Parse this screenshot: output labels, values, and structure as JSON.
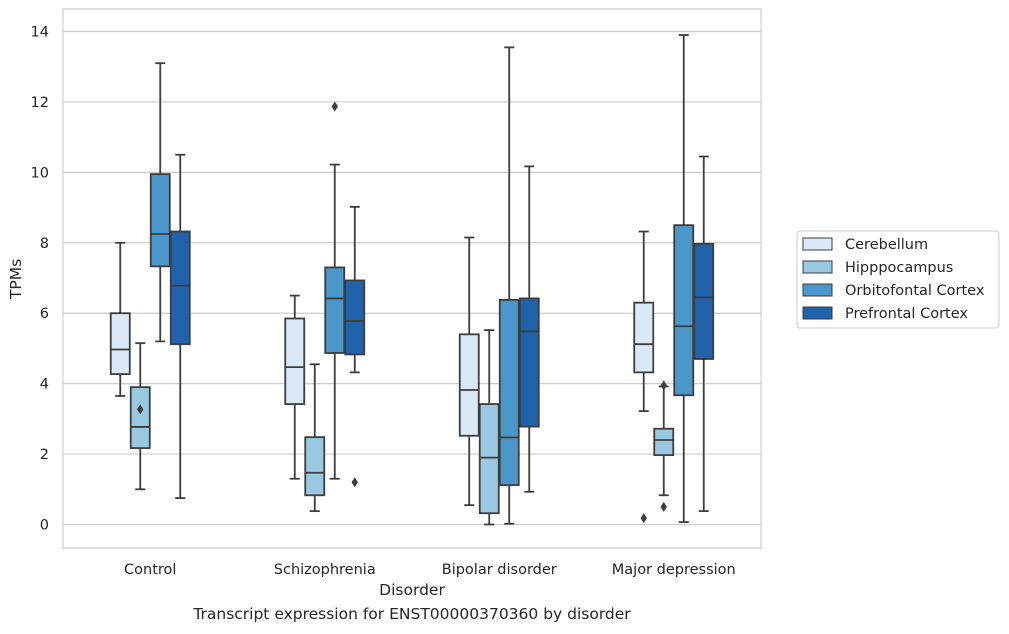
{
  "chart_data": {
    "type": "box",
    "title": "",
    "caption": "Transcript expression for ENST00000370360 by disorder",
    "xlabel": "Disorder",
    "ylabel": "TPMs",
    "ylim": [
      -0.65,
      14.6
    ],
    "yticks": [
      0,
      2,
      4,
      6,
      8,
      10,
      12,
      14
    ],
    "grid": "horizontal",
    "legend_placement": "right",
    "categories": [
      "Control",
      "Schizophrenia",
      "Bipolar disorder",
      "Major depression"
    ],
    "series": [
      {
        "name": "Cerebellum",
        "color": "#dbe9f6",
        "boxes": [
          {
            "whislo": 3.65,
            "q1": 4.27,
            "med": 4.97,
            "q3": 6.0,
            "whishi": 8.0,
            "fliers": []
          },
          {
            "whislo": 1.3,
            "q1": 3.42,
            "med": 4.47,
            "q3": 5.85,
            "whishi": 6.5,
            "fliers": []
          },
          {
            "whislo": 0.55,
            "q1": 2.52,
            "med": 3.82,
            "q3": 5.4,
            "whishi": 8.15,
            "fliers": []
          },
          {
            "whislo": 3.22,
            "q1": 4.32,
            "med": 5.12,
            "q3": 6.3,
            "whishi": 8.32,
            "fliers": [
              0.18
            ]
          }
        ]
      },
      {
        "name": "Hipppocampus",
        "color": "#9ac8e0",
        "boxes": [
          {
            "whislo": 1.0,
            "q1": 2.17,
            "med": 2.77,
            "q3": 3.9,
            "whishi": 5.15,
            "fliers": [
              3.27
            ]
          },
          {
            "whislo": 0.38,
            "q1": 0.83,
            "med": 1.47,
            "q3": 2.48,
            "whishi": 4.55,
            "fliers": []
          },
          {
            "whislo": 0.0,
            "q1": 0.32,
            "med": 1.9,
            "q3": 3.42,
            "whishi": 5.52,
            "fliers": []
          },
          {
            "whislo": 0.83,
            "q1": 1.97,
            "med": 2.4,
            "q3": 2.72,
            "whishi": 3.92,
            "fliers": [
              0.5,
              3.95
            ]
          }
        ]
      },
      {
        "name": "Orbitofontal Cortex",
        "color": "#4b97c9",
        "boxes": [
          {
            "whislo": 5.2,
            "q1": 7.33,
            "med": 8.25,
            "q3": 9.95,
            "whishi": 13.1,
            "fliers": []
          },
          {
            "whislo": 1.3,
            "q1": 4.87,
            "med": 6.42,
            "q3": 7.3,
            "whishi": 10.22,
            "fliers": [
              11.87
            ]
          },
          {
            "whislo": 0.02,
            "q1": 1.12,
            "med": 2.47,
            "q3": 6.38,
            "whishi": 13.55,
            "fliers": []
          },
          {
            "whislo": 0.07,
            "q1": 3.67,
            "med": 5.63,
            "q3": 8.5,
            "whishi": 13.9,
            "fliers": []
          }
        ]
      },
      {
        "name": "Prefrontal Cortex",
        "color": "#2163aa",
        "boxes": [
          {
            "whislo": 0.75,
            "q1": 5.12,
            "med": 6.78,
            "q3": 8.32,
            "whishi": 10.5,
            "fliers": []
          },
          {
            "whislo": 4.32,
            "q1": 4.83,
            "med": 5.78,
            "q3": 6.93,
            "whishi": 9.02,
            "fliers": [
              1.2
            ]
          },
          {
            "whislo": 0.93,
            "q1": 2.78,
            "med": 5.48,
            "q3": 6.42,
            "whishi": 10.17,
            "fliers": []
          },
          {
            "whislo": 0.38,
            "q1": 4.7,
            "med": 6.45,
            "q3": 7.97,
            "whishi": 10.45,
            "fliers": []
          }
        ]
      }
    ]
  }
}
